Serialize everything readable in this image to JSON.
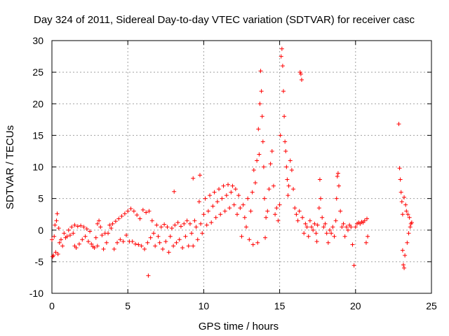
{
  "chart_data": {
    "type": "scatter",
    "title": "Day 324 of 2011, Sidereal Day-to-day VTEC variation (SDTVAR) for receiver casc",
    "xlabel": "GPS time / hours",
    "ylabel": "SDTVAR / TECUs",
    "xlim": [
      0,
      25
    ],
    "ylim": [
      -10,
      30
    ],
    "xticks": [
      0,
      5,
      10,
      15,
      20,
      25
    ],
    "yticks": [
      -10,
      -5,
      0,
      5,
      10,
      15,
      20,
      25,
      30
    ],
    "grid": true,
    "marker": "+",
    "color": "#ff0000",
    "series": [
      {
        "name": "SDTVAR",
        "points": [
          [
            0.0,
            -1.5
          ],
          [
            0.05,
            -4.2
          ],
          [
            0.1,
            -4.0
          ],
          [
            0.15,
            -1.0
          ],
          [
            0.2,
            0.8
          ],
          [
            0.25,
            -3.5
          ],
          [
            0.3,
            1.5
          ],
          [
            0.35,
            2.6
          ],
          [
            0.4,
            -3.8
          ],
          [
            0.45,
            0.3
          ],
          [
            0.5,
            -2.0
          ],
          [
            0.6,
            -1.5
          ],
          [
            0.7,
            -2.5
          ],
          [
            0.8,
            -0.5
          ],
          [
            0.9,
            -1.2
          ],
          [
            1.0,
            -1.0
          ],
          [
            1.1,
            0.0
          ],
          [
            1.2,
            -0.8
          ],
          [
            1.3,
            0.5
          ],
          [
            1.4,
            -0.5
          ],
          [
            1.5,
            0.8
          ],
          [
            1.5,
            -2.5
          ],
          [
            1.6,
            -2.8
          ],
          [
            1.7,
            0.6
          ],
          [
            1.8,
            -2.2
          ],
          [
            1.9,
            0.7
          ],
          [
            2.0,
            -1.5
          ],
          [
            2.1,
            0.5
          ],
          [
            2.2,
            -1.0
          ],
          [
            2.3,
            0.2
          ],
          [
            2.4,
            -1.8
          ],
          [
            2.5,
            -0.2
          ],
          [
            2.6,
            -2.2
          ],
          [
            2.7,
            -2.6
          ],
          [
            2.8,
            -2.8
          ],
          [
            2.9,
            -1.2
          ],
          [
            3.0,
            -2.5
          ],
          [
            3.0,
            1.0
          ],
          [
            3.1,
            1.5
          ],
          [
            3.2,
            0.5
          ],
          [
            3.3,
            -0.8
          ],
          [
            3.4,
            -3.0
          ],
          [
            3.5,
            -0.5
          ],
          [
            3.6,
            -2.0
          ],
          [
            3.7,
            -0.5
          ],
          [
            3.8,
            0.8
          ],
          [
            3.9,
            0.3
          ],
          [
            4.0,
            1.0
          ],
          [
            4.1,
            -3.0
          ],
          [
            4.2,
            1.4
          ],
          [
            4.3,
            -2.0
          ],
          [
            4.4,
            1.8
          ],
          [
            4.5,
            -1.5
          ],
          [
            4.6,
            2.2
          ],
          [
            4.7,
            -1.8
          ],
          [
            4.8,
            2.6
          ],
          [
            4.9,
            -0.8
          ],
          [
            5.0,
            3.0
          ],
          [
            5.1,
            -1.8
          ],
          [
            5.2,
            3.4
          ],
          [
            5.3,
            -1.8
          ],
          [
            5.4,
            3.0
          ],
          [
            5.5,
            -2.2
          ],
          [
            5.6,
            2.4
          ],
          [
            5.7,
            -2.3
          ],
          [
            5.8,
            1.8
          ],
          [
            5.9,
            -2.5
          ],
          [
            6.0,
            3.2
          ],
          [
            6.1,
            -3.0
          ],
          [
            6.2,
            2.8
          ],
          [
            6.3,
            -2.0
          ],
          [
            6.35,
            -7.2
          ],
          [
            6.4,
            3.0
          ],
          [
            6.5,
            -1.2
          ],
          [
            6.6,
            1.5
          ],
          [
            6.7,
            -0.5
          ],
          [
            6.8,
            -2.5
          ],
          [
            6.9,
            0.8
          ],
          [
            7.0,
            -1.0
          ],
          [
            7.1,
            -2.0
          ],
          [
            7.2,
            0.5
          ],
          [
            7.3,
            -3.0
          ],
          [
            7.4,
            0.9
          ],
          [
            7.5,
            -1.8
          ],
          [
            7.6,
            0.5
          ],
          [
            7.7,
            -3.5
          ],
          [
            7.8,
            -1.0
          ],
          [
            7.9,
            0.3
          ],
          [
            8.0,
            -2.5
          ],
          [
            8.05,
            6.1
          ],
          [
            8.1,
            0.8
          ],
          [
            8.2,
            -2.0
          ],
          [
            8.3,
            1.2
          ],
          [
            8.4,
            -1.5
          ],
          [
            8.5,
            0.6
          ],
          [
            8.6,
            -2.8
          ],
          [
            8.7,
            1.0
          ],
          [
            8.8,
            -1.0
          ],
          [
            8.9,
            1.5
          ],
          [
            9.0,
            -2.5
          ],
          [
            9.1,
            1.0
          ],
          [
            9.2,
            -0.5
          ],
          [
            9.3,
            8.2
          ],
          [
            9.3,
            -2.5
          ],
          [
            9.4,
            1.5
          ],
          [
            9.5,
            0.5
          ],
          [
            9.6,
            -1.5
          ],
          [
            9.7,
            4.5
          ],
          [
            9.75,
            8.7
          ],
          [
            9.8,
            1.0
          ],
          [
            9.9,
            -0.5
          ],
          [
            10.0,
            2.5
          ],
          [
            10.1,
            5.0
          ],
          [
            10.2,
            0.8
          ],
          [
            10.3,
            3.0
          ],
          [
            10.4,
            5.5
          ],
          [
            10.5,
            1.2
          ],
          [
            10.6,
            3.8
          ],
          [
            10.7,
            6.0
          ],
          [
            10.8,
            2.0
          ],
          [
            10.9,
            4.5
          ],
          [
            11.0,
            6.5
          ],
          [
            11.1,
            2.5
          ],
          [
            11.2,
            5.0
          ],
          [
            11.3,
            7.0
          ],
          [
            11.4,
            3.0
          ],
          [
            11.5,
            5.5
          ],
          [
            11.6,
            7.2
          ],
          [
            11.7,
            3.5
          ],
          [
            11.8,
            6.0
          ],
          [
            11.9,
            7.0
          ],
          [
            12.0,
            4.0
          ],
          [
            12.1,
            6.5
          ],
          [
            12.2,
            2.5
          ],
          [
            12.3,
            5.5
          ],
          [
            12.4,
            3.5
          ],
          [
            12.5,
            -1.0
          ],
          [
            12.6,
            4.0
          ],
          [
            12.7,
            2.0
          ],
          [
            12.8,
            0.5
          ],
          [
            12.9,
            5.0
          ],
          [
            13.0,
            -1.5
          ],
          [
            13.1,
            3.0
          ],
          [
            13.2,
            6.0
          ],
          [
            13.25,
            -2.3
          ],
          [
            13.3,
            9.5
          ],
          [
            13.4,
            7.5
          ],
          [
            13.5,
            11.0
          ],
          [
            13.55,
            -2.0
          ],
          [
            13.6,
            16.0
          ],
          [
            13.65,
            12.0
          ],
          [
            13.7,
            20.0
          ],
          [
            13.75,
            25.2
          ],
          [
            13.8,
            22.0
          ],
          [
            13.85,
            18.0
          ],
          [
            13.9,
            14.0
          ],
          [
            13.95,
            10.0
          ],
          [
            14.0,
            5.0
          ],
          [
            14.05,
            -1.2
          ],
          [
            14.1,
            2.0
          ],
          [
            14.2,
            3.0
          ],
          [
            14.3,
            6.5
          ],
          [
            14.4,
            10.5
          ],
          [
            14.5,
            12.5
          ],
          [
            14.6,
            7.0
          ],
          [
            14.7,
            2.5
          ],
          [
            14.8,
            3.5
          ],
          [
            14.9,
            1.5
          ],
          [
            15.0,
            4.0
          ],
          [
            15.05,
            15.0
          ],
          [
            15.1,
            27.5
          ],
          [
            15.15,
            28.7
          ],
          [
            15.2,
            26.0
          ],
          [
            15.25,
            22.0
          ],
          [
            15.3,
            18.0
          ],
          [
            15.35,
            14.0
          ],
          [
            15.4,
            12.5
          ],
          [
            15.45,
            10.0
          ],
          [
            15.5,
            8.0
          ],
          [
            15.55,
            5.5
          ],
          [
            15.6,
            7.0
          ],
          [
            15.7,
            11.0
          ],
          [
            15.8,
            9.5
          ],
          [
            15.9,
            6.5
          ],
          [
            16.0,
            3.5
          ],
          [
            16.1,
            2.5
          ],
          [
            16.2,
            1.5
          ],
          [
            16.3,
            3.0
          ],
          [
            16.35,
            25.0
          ],
          [
            16.4,
            24.7
          ],
          [
            16.45,
            23.8
          ],
          [
            16.5,
            2.0
          ],
          [
            16.6,
            -0.5
          ],
          [
            16.7,
            1.0
          ],
          [
            16.8,
            0.5
          ],
          [
            16.9,
            -1.0
          ],
          [
            17.0,
            1.5
          ],
          [
            17.1,
            0.5
          ],
          [
            17.2,
            0.0
          ],
          [
            17.3,
            1.0
          ],
          [
            17.4,
            -0.5
          ],
          [
            17.45,
            -1.8
          ],
          [
            17.5,
            0.8
          ],
          [
            17.6,
            3.5
          ],
          [
            17.65,
            8.0
          ],
          [
            17.7,
            5.0
          ],
          [
            17.8,
            2.0
          ],
          [
            17.9,
            0.5
          ],
          [
            18.0,
            1.0
          ],
          [
            18.1,
            -0.5
          ],
          [
            18.2,
            -2.0
          ],
          [
            18.3,
            0.0
          ],
          [
            18.4,
            -0.5
          ],
          [
            18.5,
            0.5
          ],
          [
            18.6,
            -1.0
          ],
          [
            18.7,
            1.5
          ],
          [
            18.75,
            5.0
          ],
          [
            18.8,
            8.5
          ],
          [
            18.85,
            9.0
          ],
          [
            18.9,
            7.0
          ],
          [
            19.0,
            3.0
          ],
          [
            19.1,
            0.5
          ],
          [
            19.2,
            1.0
          ],
          [
            19.3,
            -1.0
          ],
          [
            19.4,
            0.5
          ],
          [
            19.5,
            0.0
          ],
          [
            19.6,
            0.8
          ],
          [
            19.7,
            0.5
          ],
          [
            19.8,
            -2.3
          ],
          [
            19.9,
            -5.6
          ],
          [
            20.0,
            0.5
          ],
          [
            20.1,
            1.0
          ],
          [
            20.2,
            1.2
          ],
          [
            20.3,
            1.0
          ],
          [
            20.4,
            1.3
          ],
          [
            20.5,
            1.2
          ],
          [
            20.6,
            1.5
          ],
          [
            20.7,
            -2.0
          ],
          [
            20.75,
            1.8
          ],
          [
            20.8,
            -1.0
          ],
          [
            22.85,
            16.8
          ],
          [
            22.9,
            9.8
          ],
          [
            22.95,
            8.0
          ],
          [
            23.0,
            6.0
          ],
          [
            23.05,
            4.5
          ],
          [
            23.1,
            2.5
          ],
          [
            23.1,
            -3.2
          ],
          [
            23.15,
            -5.5
          ],
          [
            23.2,
            -6.0
          ],
          [
            23.25,
            -4.0
          ],
          [
            23.2,
            5.2
          ],
          [
            23.3,
            4.0
          ],
          [
            23.35,
            3.0
          ],
          [
            23.4,
            -2.0
          ],
          [
            23.45,
            2.5
          ],
          [
            23.5,
            -0.5
          ],
          [
            23.55,
            2.0
          ],
          [
            23.6,
            0.5
          ],
          [
            23.65,
            1.0
          ],
          [
            23.7,
            1.2
          ]
        ]
      }
    ]
  }
}
